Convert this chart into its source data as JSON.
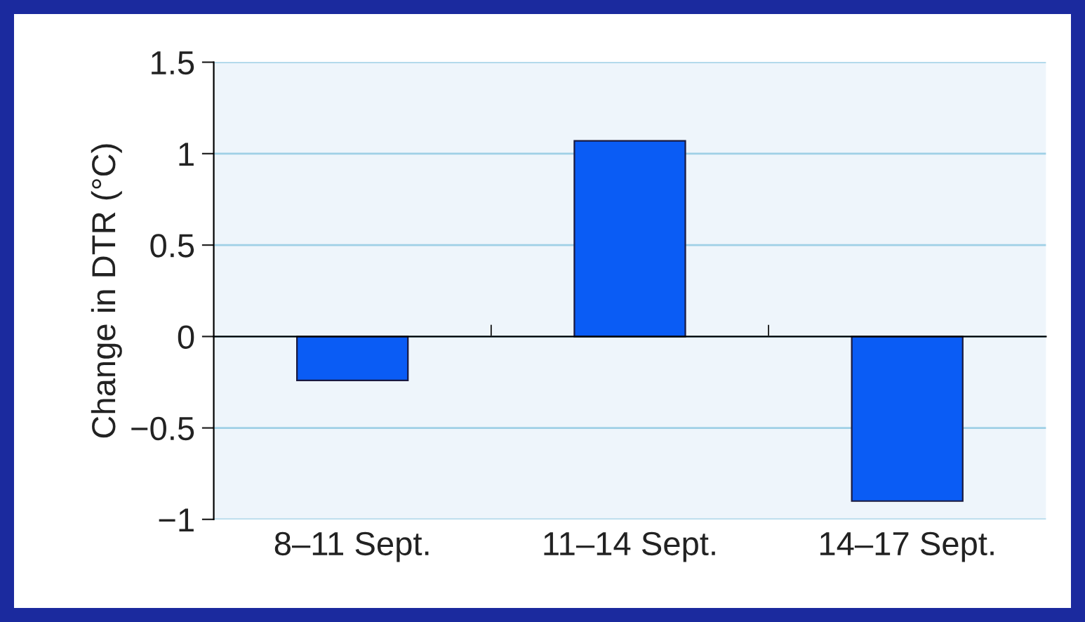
{
  "chart_data": {
    "type": "bar",
    "ylabel": "Change in DTR (°C)",
    "categories": [
      "8–11 Sept.",
      "11–14 Sept.",
      "14–17 Sept."
    ],
    "values": [
      -0.24,
      1.07,
      -0.9
    ],
    "color": "#0a5cf5",
    "ylim": [
      -1,
      1.5
    ],
    "yticks": [
      {
        "value": -1,
        "label": "−1"
      },
      {
        "value": -0.5,
        "label": "−0.5"
      },
      0,
      0.5,
      1,
      1.5
    ],
    "grid": "y"
  }
}
